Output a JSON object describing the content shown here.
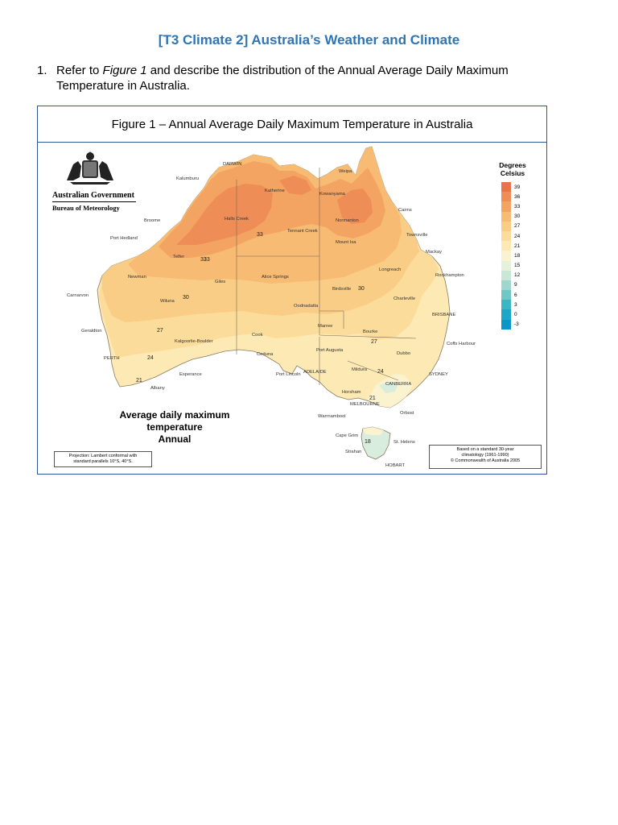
{
  "header": {
    "title": "[T3 Climate 2] Australia’s Weather and Climate"
  },
  "question": {
    "number": "1.",
    "text_before": "Refer to ",
    "figure_ref": "Figure 1",
    "text_after": " and describe the distribution of the Annual Average Daily Maximum Temperature in Australia."
  },
  "figure": {
    "caption": "Figure 1 – Annual Average Daily Maximum Temperature in Australia",
    "agency": {
      "government": "Australian Government",
      "bureau": "Bureau of Meteorology"
    },
    "map_title_line1": "Average daily maximum temperature",
    "map_title_line2": "Annual",
    "projection_line1": "Projection: Lambert conformal with",
    "projection_line2": "standard parallels 10°S, 40°S.",
    "basis_line1": "Based on a standard 30-year",
    "basis_line2": "climatology (1961-1990)",
    "basis_line3": "© Commonwealth of Australia 2005",
    "legend": {
      "title_line1": "Degrees",
      "title_line2": "Celsius",
      "levels": [
        {
          "label": "39",
          "color": "#e8754a"
        },
        {
          "label": "36",
          "color": "#ef8d56"
        },
        {
          "label": "33",
          "color": "#f4a462"
        },
        {
          "label": "30",
          "color": "#f7bb73"
        },
        {
          "label": "27",
          "color": "#f9cd85"
        },
        {
          "label": "24",
          "color": "#fbdc9a"
        },
        {
          "label": "21",
          "color": "#fde9b3"
        },
        {
          "label": "18",
          "color": "#fbf3cf"
        },
        {
          "label": "15",
          "color": "#e6f1dc"
        },
        {
          "label": "12",
          "color": "#c9e6d7"
        },
        {
          "label": "9",
          "color": "#9fd7cf"
        },
        {
          "label": "6",
          "color": "#6fc7c6"
        },
        {
          "label": "3",
          "color": "#3cb6c2"
        },
        {
          "label": "0",
          "color": "#1ca7c6"
        },
        {
          "label": "-3",
          "color": "#0b96c9"
        }
      ]
    },
    "places": [
      "DARWIN",
      "Kalumburu",
      "Katherine",
      "Weipa",
      "Kowanyama",
      "Cairns",
      "Broome",
      "Halls Creek",
      "Tennant Creek",
      "Normanton",
      "Townsville",
      "Port Hedland",
      "Mount Isa",
      "Mackay",
      "Telfer",
      "Longreach",
      "Rockhampton",
      "Newman",
      "Giles",
      "Alice Springs",
      "Birdsville",
      "Carnarvon",
      "Wiluna",
      "Oodnadatta",
      "Charleville",
      "BRISBANE",
      "Geraldton",
      "Cook",
      "Marree",
      "Bourke",
      "Coffs Harbour",
      "Kalgoorlie-Boulder",
      "Ceduna",
      "Port Augusta",
      "Dubbo",
      "PERTH",
      "Esperance",
      "Port Lincoln",
      "ADELAIDE",
      "Mildura",
      "SYDNEY",
      "Albany",
      "CANBERRA",
      "Horsham",
      "MELBOURNE",
      "Warrnambool",
      "Orbost",
      "Cape Grim",
      "St. Helens",
      "Strahan",
      "HOBART"
    ],
    "isotherms": [
      "33",
      "33",
      "33",
      "30",
      "30",
      "27",
      "27",
      "24",
      "24",
      "21",
      "21",
      "18"
    ]
  }
}
